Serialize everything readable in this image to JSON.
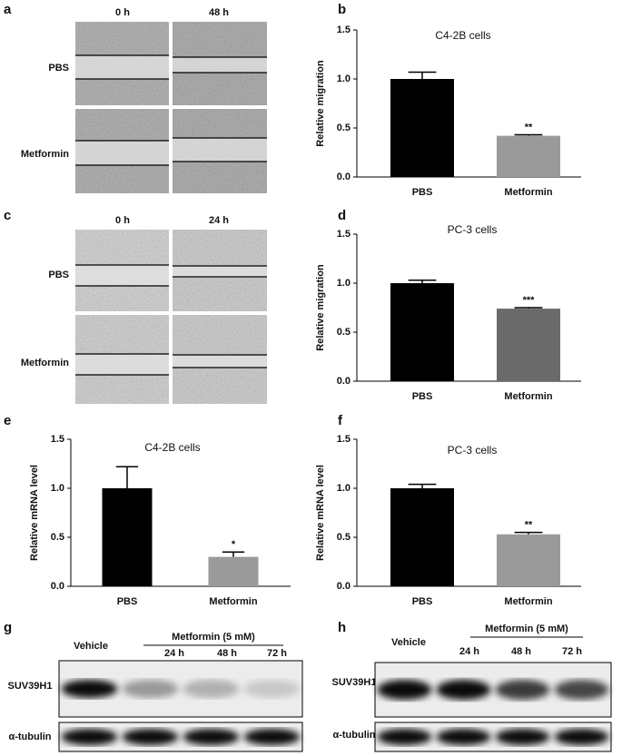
{
  "panels": {
    "labels": [
      "a",
      "b",
      "c",
      "d",
      "e",
      "f",
      "g",
      "h"
    ]
  },
  "scratch_a": {
    "columns": [
      "0 h",
      "48 h"
    ],
    "rows": [
      "PBS",
      "Metformin"
    ]
  },
  "scratch_c": {
    "columns": [
      "0 h",
      "24 h"
    ],
    "rows": [
      "PBS",
      "Metformin"
    ]
  },
  "blot_g": {
    "control": "Vehicle",
    "treatment": "Metformin (5 mM)",
    "times": [
      "24 h",
      "48 h",
      "72 h"
    ],
    "proteins": [
      "SUV39H1",
      "α-tubulin"
    ]
  },
  "blot_h": {
    "control": "Vehicle",
    "treatment": "Metformin (5 mM)",
    "times": [
      "24 h",
      "48 h",
      "72 h"
    ],
    "proteins": [
      "SUV39H1",
      "α-tubulin"
    ]
  },
  "chart_data": [
    {
      "type": "bar",
      "title": "C4-2B cells",
      "y_label": "Relative migration",
      "categories": [
        "PBS",
        "Metformin"
      ],
      "values": [
        1.0,
        0.42
      ],
      "errors": [
        0.07,
        0.01
      ],
      "significance": [
        null,
        "**"
      ],
      "colors": [
        "#000000",
        "#9a9a9a"
      ],
      "ylim": [
        0,
        1.5
      ],
      "yticks": [
        {
          "value": 0,
          "label": "0.0"
        },
        {
          "value": 0.5,
          "label": "0.5"
        },
        {
          "value": 1,
          "label": "1.0"
        },
        {
          "value": 1.5,
          "label": "1.5"
        }
      ]
    },
    {
      "type": "bar",
      "title": "PC-3 cells",
      "y_label": "Relative migration",
      "categories": [
        "PBS",
        "Metformin"
      ],
      "values": [
        1.0,
        0.74
      ],
      "errors": [
        0.03,
        0.01
      ],
      "significance": [
        null,
        "***"
      ],
      "colors": [
        "#000000",
        "#6a6a6a"
      ],
      "ylim": [
        0,
        1.5
      ],
      "yticks": [
        {
          "value": 0,
          "label": "0.0"
        },
        {
          "value": 0.5,
          "label": "0.5"
        },
        {
          "value": 1,
          "label": "1.0"
        },
        {
          "value": 1.5,
          "label": "1.5"
        }
      ]
    },
    {
      "type": "bar",
      "title": "C4-2B cells",
      "y_label": "Relative mRNA level",
      "categories": [
        "PBS",
        "Metformin"
      ],
      "values": [
        1.0,
        0.3
      ],
      "errors": [
        0.22,
        0.05
      ],
      "significance": [
        null,
        "*"
      ],
      "colors": [
        "#000000",
        "#9a9a9a"
      ],
      "ylim": [
        0,
        1.5
      ],
      "yticks": [
        {
          "value": 0,
          "label": "0.0"
        },
        {
          "value": 0.5,
          "label": "0.5"
        },
        {
          "value": 1,
          "label": "1.0"
        },
        {
          "value": 1.5,
          "label": "1.5"
        }
      ]
    },
    {
      "type": "bar",
      "title": "PC-3 cells",
      "y_label": "Relative mRNA level",
      "categories": [
        "PBS",
        "Metformin"
      ],
      "values": [
        1.0,
        0.53
      ],
      "errors": [
        0.04,
        0.02
      ],
      "significance": [
        null,
        "**"
      ],
      "colors": [
        "#000000",
        "#9a9a9a"
      ],
      "ylim": [
        0,
        1.5
      ],
      "yticks": [
        {
          "value": 0,
          "label": "0.0"
        },
        {
          "value": 0.5,
          "label": "0.5"
        },
        {
          "value": 1,
          "label": "1.0"
        },
        {
          "value": 1.5,
          "label": "1.5"
        }
      ]
    }
  ]
}
